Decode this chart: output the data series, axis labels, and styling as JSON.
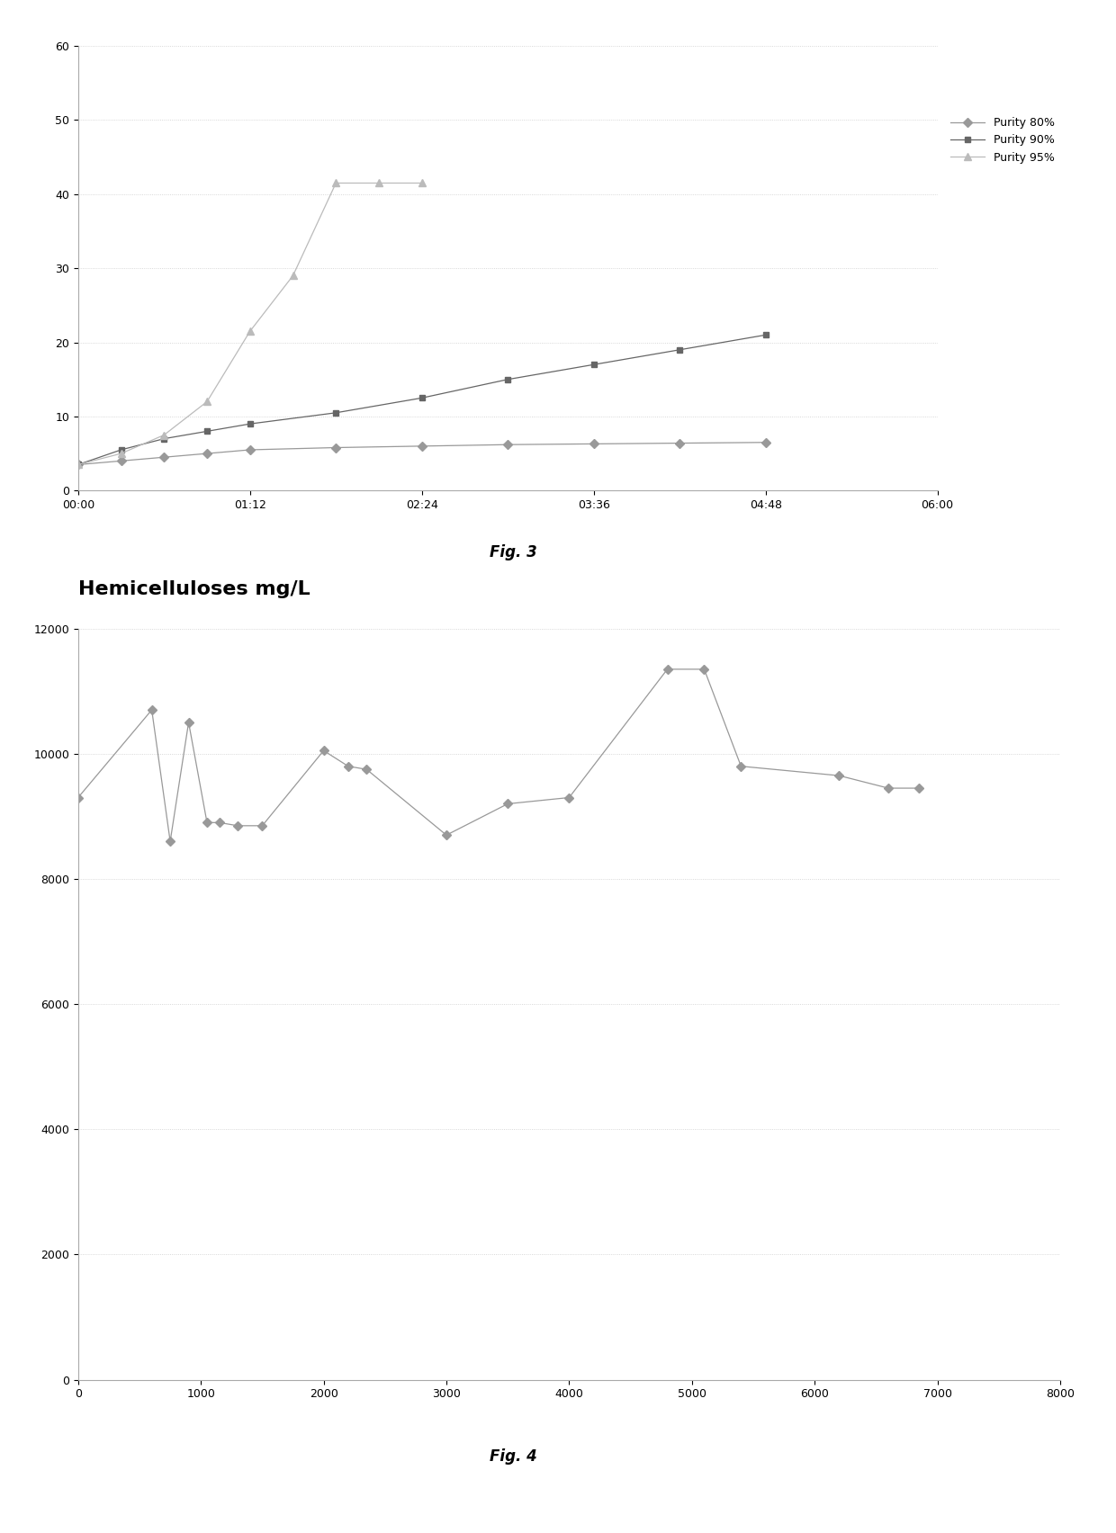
{
  "fig3": {
    "title": "Fig. 3",
    "purity80": {
      "label": "Purity 80%",
      "x_minutes": [
        0,
        18,
        36,
        54,
        72,
        108,
        144,
        180,
        216,
        252,
        288
      ],
      "y": [
        3.5,
        4.0,
        4.5,
        5.0,
        5.5,
        5.8,
        6.0,
        6.2,
        6.3,
        6.4,
        6.5
      ],
      "color": "#999999",
      "marker": "D",
      "markersize": 5
    },
    "purity90": {
      "label": "Purity 90%",
      "x_minutes": [
        0,
        18,
        36,
        54,
        72,
        108,
        144,
        180,
        216,
        252,
        288
      ],
      "y": [
        3.5,
        5.5,
        7.0,
        8.0,
        9.0,
        10.5,
        12.5,
        15.0,
        17.0,
        19.0,
        21.0
      ],
      "color": "#666666",
      "marker": "s",
      "markersize": 5
    },
    "purity95": {
      "label": "Purity 95%",
      "x_minutes": [
        0,
        18,
        36,
        54,
        72,
        90,
        108,
        126,
        144
      ],
      "y": [
        3.5,
        5.0,
        7.5,
        12.0,
        21.5,
        29.0,
        41.5,
        41.5,
        41.5
      ],
      "color": "#bbbbbb",
      "marker": "^",
      "markersize": 6
    },
    "ylim": [
      0,
      60
    ],
    "yticks": [
      0,
      10,
      20,
      30,
      40,
      50,
      60
    ],
    "xlim_minutes": [
      0,
      360
    ],
    "xticks_minutes": [
      0,
      72,
      144,
      216,
      288,
      360
    ],
    "xtick_labels": [
      "00:00",
      "01:12",
      "02:24",
      "03:36",
      "04:48",
      "06:00"
    ]
  },
  "fig4": {
    "title": "Fig. 4",
    "header": "Hemicelluloses mg/L",
    "x": [
      0,
      600,
      750,
      900,
      1050,
      1150,
      1300,
      1500,
      2000,
      2200,
      2350,
      3000,
      3500,
      4000,
      4800,
      5100,
      5400,
      6200,
      6600,
      6850
    ],
    "y": [
      9300,
      10700,
      8600,
      10500,
      8900,
      8900,
      8850,
      8850,
      10050,
      9800,
      9750,
      8700,
      9200,
      9300,
      11350,
      11350,
      9800,
      9650,
      9450,
      9450
    ],
    "color": "#999999",
    "marker": "D",
    "markersize": 5,
    "ylim": [
      0,
      12000
    ],
    "yticks": [
      0,
      2000,
      4000,
      6000,
      8000,
      10000,
      12000
    ],
    "xlim": [
      0,
      8000
    ],
    "xticks": [
      0,
      1000,
      2000,
      3000,
      4000,
      5000,
      6000,
      7000,
      8000
    ]
  },
  "background_color": "#ffffff",
  "grid_color": "#cccccc"
}
